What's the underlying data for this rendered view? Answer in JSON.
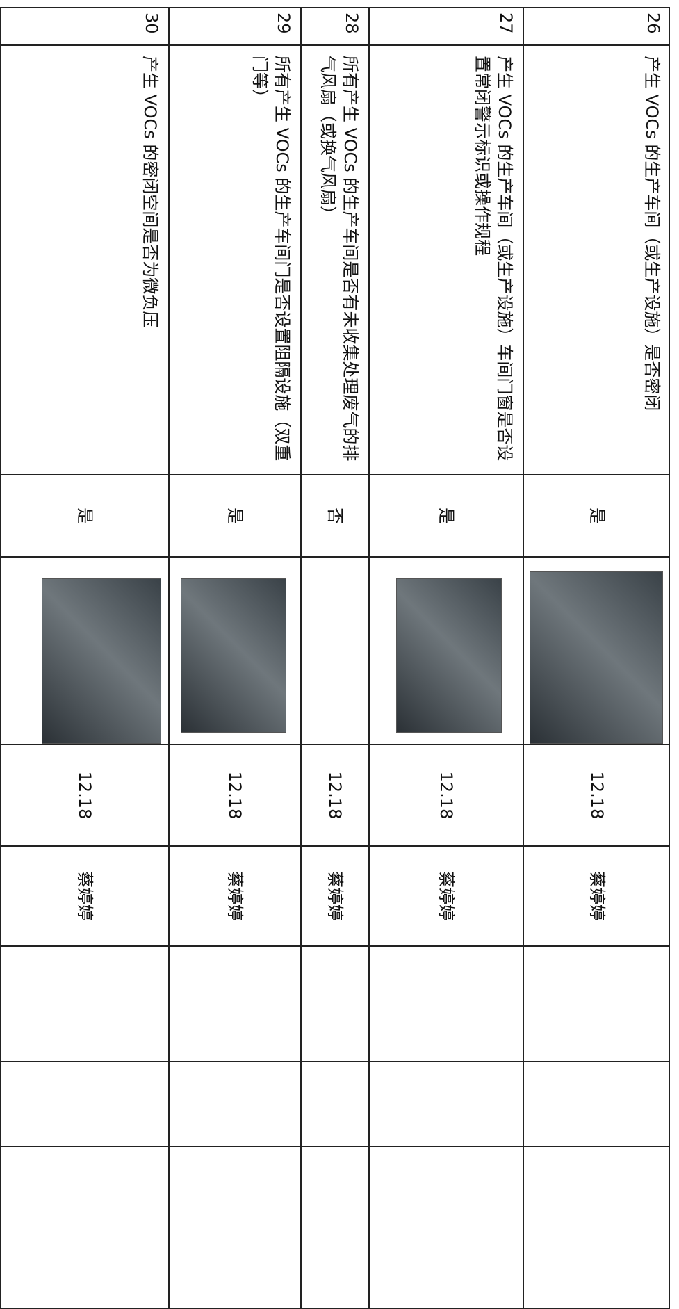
{
  "table": {
    "rows": [
      [
        "26",
        "产生 VOCs 的生产车间（或生产设施）是否密闭",
        "是",
        "12.18",
        "蔡婷婷"
      ],
      [
        "27",
        "产生 VOCs 的生产车间（或生产设施）车间门窗是否设置常闭警示标识或操作规程",
        "是",
        "12.18",
        "蔡婷婷"
      ],
      [
        "28",
        "所有产生 VOCs 的生产车间是否有未收集处理废气的排气风扇（或换气风扇）",
        "否",
        "12.18",
        "蔡婷婷"
      ],
      [
        "29",
        "所有产生 VOCs 的生产车间门是否设置阻隔设施（双重门等）",
        "是",
        "12.18",
        "蔡婷婷"
      ],
      [
        "30",
        "产生 VOCs 的密闭空间是否为微负压",
        "是",
        "12.18",
        "蔡婷婷"
      ]
    ]
  }
}
